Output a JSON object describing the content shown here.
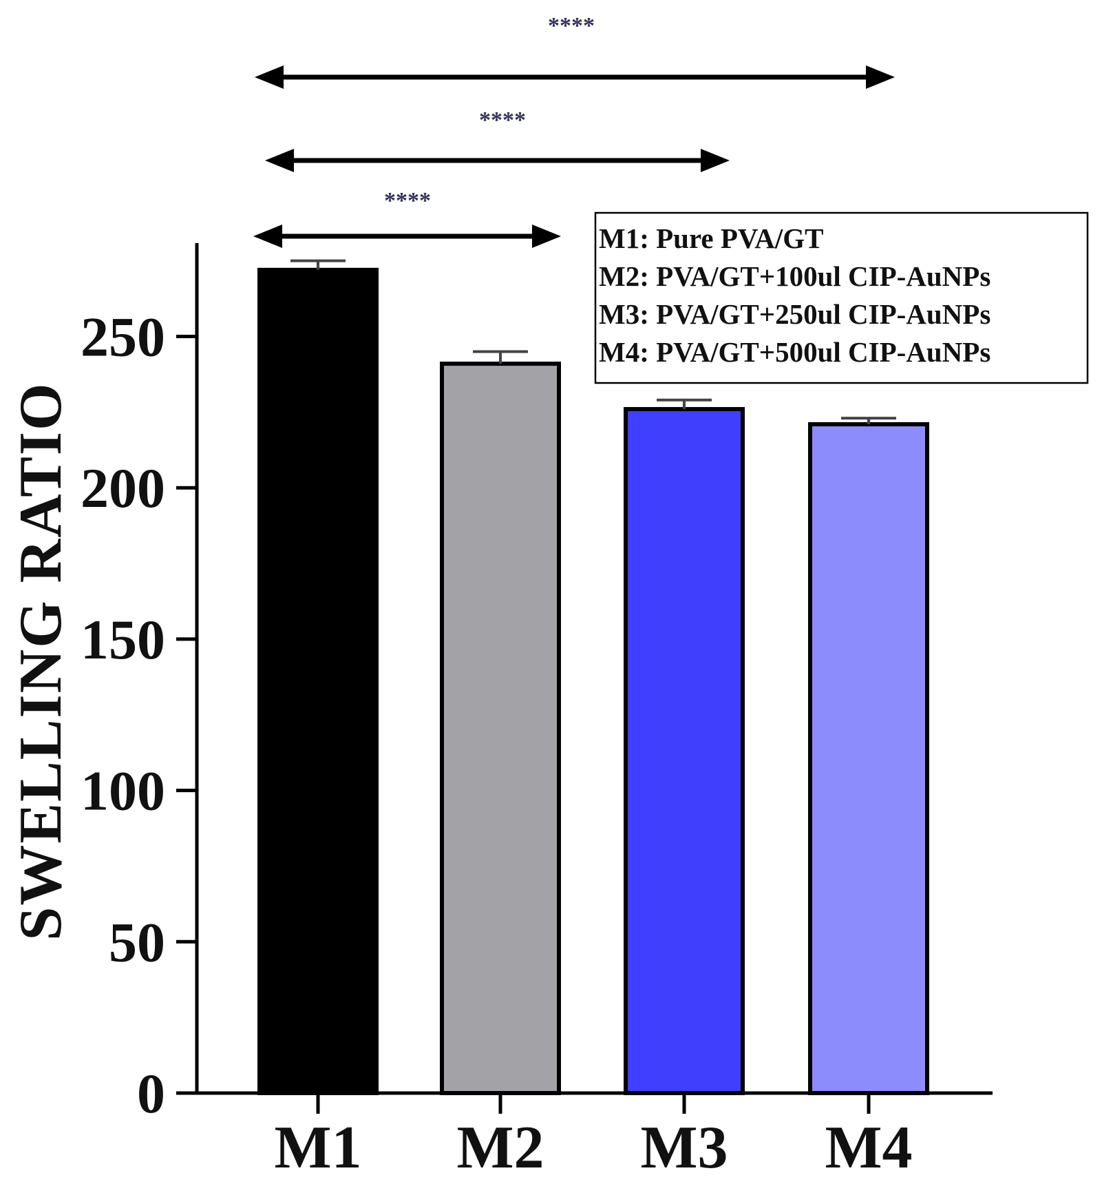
{
  "chart_data": {
    "type": "bar",
    "ylabel": "SWELLING RATIO",
    "xlabel": "",
    "categories": [
      "M1",
      "M2",
      "M3",
      "M4"
    ],
    "values": [
      272,
      241,
      226,
      221
    ],
    "errors": [
      3,
      4,
      3,
      2
    ],
    "colors": [
      "#000000",
      "#a3a2a7",
      "#3f3ffd",
      "#8c8cfd"
    ],
    "ylim": [
      0,
      280
    ],
    "yticks": [
      0,
      50,
      100,
      150,
      200,
      250
    ],
    "grid": false,
    "legend": {
      "position": "top-right",
      "entries": [
        "M1: Pure PVA/GT",
        "M2: PVA/GT+100ul CIP-AuNPs",
        "M3: PVA/GT+250ul CIP-AuNPs",
        "M4: PVA/GT+500ul CIP-AuNPs"
      ]
    },
    "significance": [
      {
        "from": "M1",
        "to": "M2",
        "label": "****"
      },
      {
        "from": "M1",
        "to": "M3",
        "label": "****"
      },
      {
        "from": "M1",
        "to": "M4",
        "label": "****"
      }
    ]
  }
}
